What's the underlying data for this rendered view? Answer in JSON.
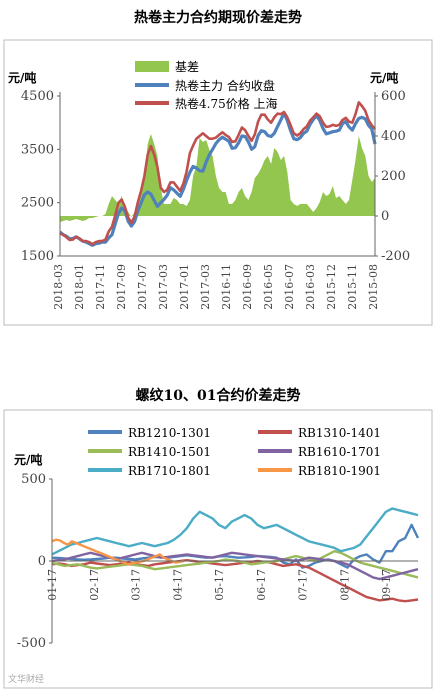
{
  "chart_data": [
    {
      "type": "line",
      "title": "热卷主力合约期现价差走势",
      "ylabel_left": "元/吨",
      "ylabel_right": "元/吨",
      "ylim_left": [
        1500,
        4500
      ],
      "ylim_right": [
        -200,
        600
      ],
      "yticks_left": [
        "4500",
        "3500",
        "2500",
        "1500"
      ],
      "yticks_right": [
        "600",
        "400",
        "200",
        "0",
        "-200"
      ],
      "x_tick_labels": [
        "2015-08",
        "2015-11",
        "2015-12",
        "2016-03",
        "2016-07",
        "2016-05",
        "2016-09",
        "2016-11",
        "2017-03",
        "2017-01",
        "2017-03",
        "2017-07",
        "2017-09",
        "2017-11",
        "2018-01",
        "2018-03"
      ],
      "x_order": "reversed",
      "legend_placement": "top-center",
      "grid": false,
      "series": [
        {
          "name": "基差",
          "kind": "area",
          "axis": "right",
          "color": "#92C64E",
          "values": [
            -30,
            -25,
            -20,
            -25,
            -20,
            -15,
            -20,
            -25,
            -20,
            -10,
            -10,
            -5,
            0,
            0,
            10,
            60,
            100,
            80,
            60,
            100,
            40,
            20,
            -5,
            20,
            60,
            120,
            200,
            360,
            410,
            360,
            300,
            140,
            60,
            60,
            60,
            90,
            80,
            60,
            60,
            50,
            80,
            200,
            250,
            390,
            370,
            380,
            330,
            300,
            200,
            140,
            120,
            120,
            60,
            60,
            80,
            120,
            140,
            100,
            80,
            120,
            190,
            210,
            240,
            280,
            300,
            260,
            340,
            320,
            280,
            300,
            220,
            80,
            60,
            50,
            60,
            60,
            60,
            40,
            20,
            40,
            70,
            120,
            100,
            110,
            150,
            90,
            100,
            80,
            60,
            80,
            180,
            280,
            400,
            340,
            300,
            200,
            170,
            190
          ]
        },
        {
          "name": "热卷主力 合约收盘",
          "kind": "line",
          "axis": "left",
          "color": "#4F81BD",
          "values": [
            1950,
            1900,
            1870,
            1820,
            1830,
            1860,
            1820,
            1780,
            1760,
            1730,
            1700,
            1730,
            1740,
            1760,
            1760,
            1840,
            1900,
            2100,
            2300,
            2400,
            2350,
            2150,
            2060,
            2150,
            2350,
            2500,
            2650,
            2700,
            2660,
            2540,
            2430,
            2500,
            2560,
            2640,
            2780,
            2740,
            2680,
            2620,
            2750,
            2920,
            3070,
            3180,
            3150,
            3100,
            3090,
            3260,
            3400,
            3500,
            3610,
            3680,
            3730,
            3690,
            3650,
            3520,
            3530,
            3620,
            3750,
            3740,
            3640,
            3500,
            3550,
            3760,
            3850,
            3830,
            3760,
            3740,
            3800,
            3930,
            4050,
            4180,
            4040,
            3850,
            3700,
            3680,
            3720,
            3800,
            3840,
            3970,
            4060,
            4130,
            4040,
            3890,
            3790,
            3810,
            3830,
            3840,
            3860,
            3980,
            4020,
            3920,
            3860,
            3980,
            4080,
            4100,
            4070,
            3950,
            3880,
            3600
          ]
        },
        {
          "name": "热卷4.75价格 上海",
          "kind": "line",
          "axis": "left",
          "color": "#C0504D",
          "values": [
            1920,
            1900,
            1850,
            1800,
            1810,
            1860,
            1830,
            1780,
            1780,
            1760,
            1720,
            1760,
            1780,
            1780,
            1810,
            1960,
            2050,
            2260,
            2500,
            2560,
            2420,
            2220,
            2120,
            2250,
            2510,
            2730,
            3000,
            3400,
            3560,
            3400,
            3170,
            2780,
            2700,
            2740,
            2880,
            2880,
            2800,
            2720,
            2860,
            3080,
            3430,
            3570,
            3700,
            3750,
            3800,
            3750,
            3700,
            3700,
            3720,
            3770,
            3820,
            3770,
            3730,
            3640,
            3650,
            3770,
            3910,
            3860,
            3750,
            3660,
            3780,
            4020,
            4150,
            4150,
            4060,
            4000,
            4100,
            4170,
            4160,
            4200,
            4100,
            3950,
            3800,
            3760,
            3800,
            3880,
            3930,
            4040,
            4100,
            4170,
            4120,
            4000,
            3920,
            3930,
            3960,
            3940,
            3960,
            4050,
            4090,
            4020,
            4000,
            4160,
            4380,
            4310,
            4220,
            4050,
            3950,
            3880
          ]
        }
      ]
    },
    {
      "type": "line",
      "title": "螺纹10、01合约价差走势",
      "ylabel": "元/吨",
      "ylim": [
        -500,
        500
      ],
      "yticks": [
        "500",
        "0",
        "-500"
      ],
      "x_tick_labels": [
        "01-17",
        "02-17",
        "03-17",
        "04-17",
        "05-17",
        "06-17",
        "07-17",
        "08-17",
        "09-17"
      ],
      "legend_placement": "top",
      "grid": false,
      "series": [
        {
          "name": "RB1210-1301",
          "color": "#4F81BD",
          "values": [
            20,
            18,
            15,
            12,
            10,
            8,
            10,
            12,
            15,
            20,
            20,
            15,
            12,
            10,
            15,
            20,
            25,
            22,
            20,
            25,
            30,
            35,
            30,
            25,
            20,
            22,
            28,
            30,
            25,
            20,
            22,
            25,
            30,
            28,
            25,
            20,
            -10,
            -20,
            10,
            -40,
            -30,
            -10,
            0,
            10,
            0,
            -20,
            -40,
            10,
            30,
            40,
            10,
            -10,
            60,
            60,
            120,
            140,
            220,
            140
          ]
        },
        {
          "name": "RB1310-1401",
          "color": "#C0504D",
          "values": [
            -20,
            -15,
            -20,
            -30,
            -25,
            -20,
            -10,
            -15,
            -20,
            -25,
            -20,
            -15,
            -10,
            -20,
            -25,
            -30,
            -20,
            -15,
            -10,
            -5,
            0,
            5,
            0,
            -5,
            -10,
            -15,
            -20,
            -25,
            -20,
            -15,
            -10,
            -5,
            0,
            -5,
            -10,
            -20,
            -30,
            -25,
            -20,
            -30,
            -40,
            -60,
            -80,
            -100,
            -120,
            -140,
            -160,
            -180,
            -200,
            -220,
            -230,
            -240,
            -235,
            -230,
            -240,
            -245,
            -240,
            -235
          ]
        },
        {
          "name": "RB1410-1501",
          "color": "#9BBB59",
          "values": [
            -10,
            -20,
            -30,
            -25,
            -20,
            -30,
            -40,
            -45,
            -40,
            -35,
            -30,
            -25,
            -20,
            -25,
            -30,
            -40,
            -50,
            -45,
            -40,
            -35,
            -30,
            -25,
            -20,
            -15,
            -10,
            -5,
            0,
            10,
            5,
            0,
            -10,
            -20,
            -15,
            -10,
            -5,
            0,
            10,
            20,
            30,
            20,
            10,
            0,
            20,
            40,
            60,
            50,
            30,
            10,
            -10,
            -20,
            -30,
            -40,
            -50,
            -60,
            -70,
            -80,
            -90,
            -100
          ]
        },
        {
          "name": "RB1610-1701",
          "color": "#8064A2",
          "values": [
            0,
            5,
            10,
            20,
            30,
            40,
            50,
            40,
            30,
            20,
            10,
            20,
            30,
            40,
            50,
            40,
            30,
            20,
            25,
            30,
            35,
            40,
            35,
            30,
            25,
            20,
            30,
            40,
            50,
            45,
            40,
            35,
            30,
            25,
            20,
            15,
            10,
            5,
            0,
            10,
            20,
            15,
            10,
            5,
            0,
            -10,
            -20,
            -40,
            -60,
            -80,
            -100,
            -110,
            -100,
            -90,
            -80,
            -70,
            -60,
            -50
          ]
        },
        {
          "name": "RB1710-1801",
          "color": "#4BACC6",
          "values": [
            40,
            60,
            80,
            100,
            110,
            120,
            130,
            140,
            130,
            120,
            110,
            100,
            90,
            100,
            110,
            100,
            90,
            100,
            110,
            130,
            160,
            200,
            260,
            300,
            280,
            260,
            220,
            200,
            240,
            260,
            280,
            260,
            220,
            200,
            210,
            220,
            200,
            180,
            160,
            140,
            120,
            110,
            100,
            90,
            80,
            60,
            70,
            80,
            100,
            150,
            200,
            250,
            300,
            320,
            310,
            300,
            290,
            280
          ]
        },
        {
          "name": "RB1810-1901",
          "color": "#F79646",
          "values": [
            120,
            130,
            125,
            110,
            100,
            120,
            110,
            100,
            90,
            80,
            70,
            60,
            50,
            40,
            30,
            20,
            10,
            0,
            -10,
            -20,
            -15,
            -10,
            -5,
            0,
            10,
            20,
            30,
            40,
            20,
            10,
            0,
            -10,
            -5,
            0
          ]
        }
      ]
    }
  ],
  "watermark": "文华财经"
}
